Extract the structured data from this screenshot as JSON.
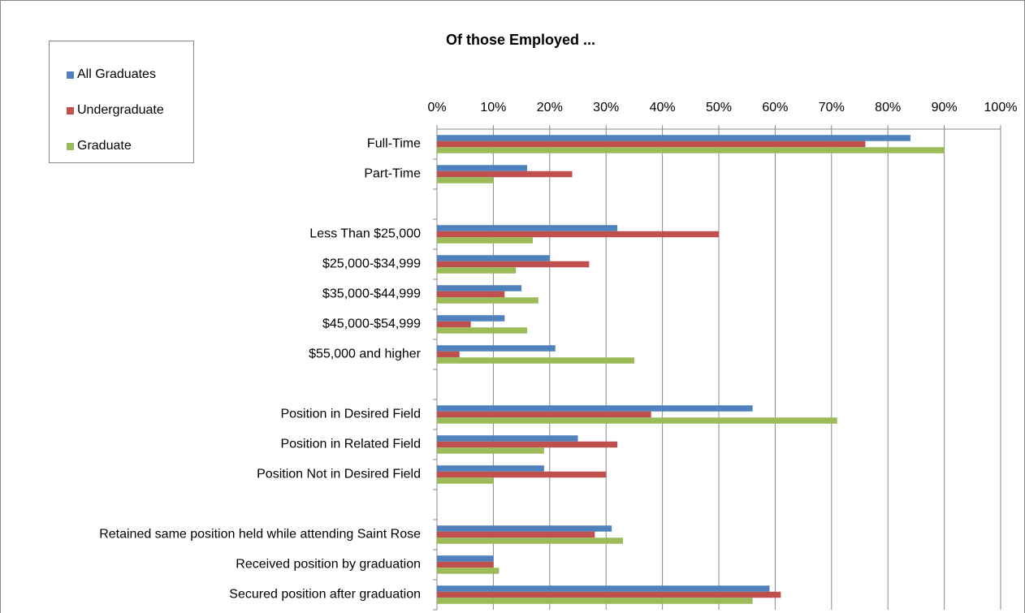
{
  "chart_data": {
    "type": "hbar",
    "title": "Of those Employed ...",
    "categories": [
      "Full-Time",
      "Part-Time",
      null,
      "Less Than $25,000",
      "$25,000-$34,999",
      "$35,000-$44,999",
      "$45,000-$54,999",
      "$55,000 and higher",
      null,
      "Position in Desired Field",
      "Position in Related Field",
      "Position Not in Desired Field",
      null,
      "Retained same position held while attending Saint Rose",
      "Received position by graduation",
      "Secured position after graduation"
    ],
    "series": [
      {
        "name": "All Graduates",
        "color": "#4f81bd",
        "values": [
          84,
          16,
          null,
          32,
          20,
          15,
          12,
          21,
          null,
          56,
          25,
          19,
          null,
          31,
          10,
          59
        ]
      },
      {
        "name": "Undergraduate",
        "color": "#c0504d",
        "values": [
          76,
          24,
          null,
          50,
          27,
          12,
          6,
          4,
          null,
          38,
          32,
          30,
          null,
          28,
          10,
          61
        ]
      },
      {
        "name": "Graduate",
        "color": "#9bbb59",
        "values": [
          90,
          10,
          null,
          17,
          14,
          18,
          16,
          35,
          null,
          71,
          19,
          10,
          null,
          33,
          11,
          56
        ]
      }
    ],
    "xlim": [
      0,
      100
    ],
    "xticks": [
      {
        "value": 0,
        "label": "0%"
      },
      {
        "value": 10,
        "label": "10%"
      },
      {
        "value": 20,
        "label": "20%"
      },
      {
        "value": 30,
        "label": "30%"
      },
      {
        "value": 40,
        "label": "40%"
      },
      {
        "value": 50,
        "label": "50%"
      },
      {
        "value": 60,
        "label": "60%"
      },
      {
        "value": 70,
        "label": "70%"
      },
      {
        "value": 80,
        "label": "80%"
      },
      {
        "value": 90,
        "label": "90%"
      },
      {
        "value": 100,
        "label": "100%"
      }
    ],
    "grid": true,
    "legend": "top-left"
  }
}
